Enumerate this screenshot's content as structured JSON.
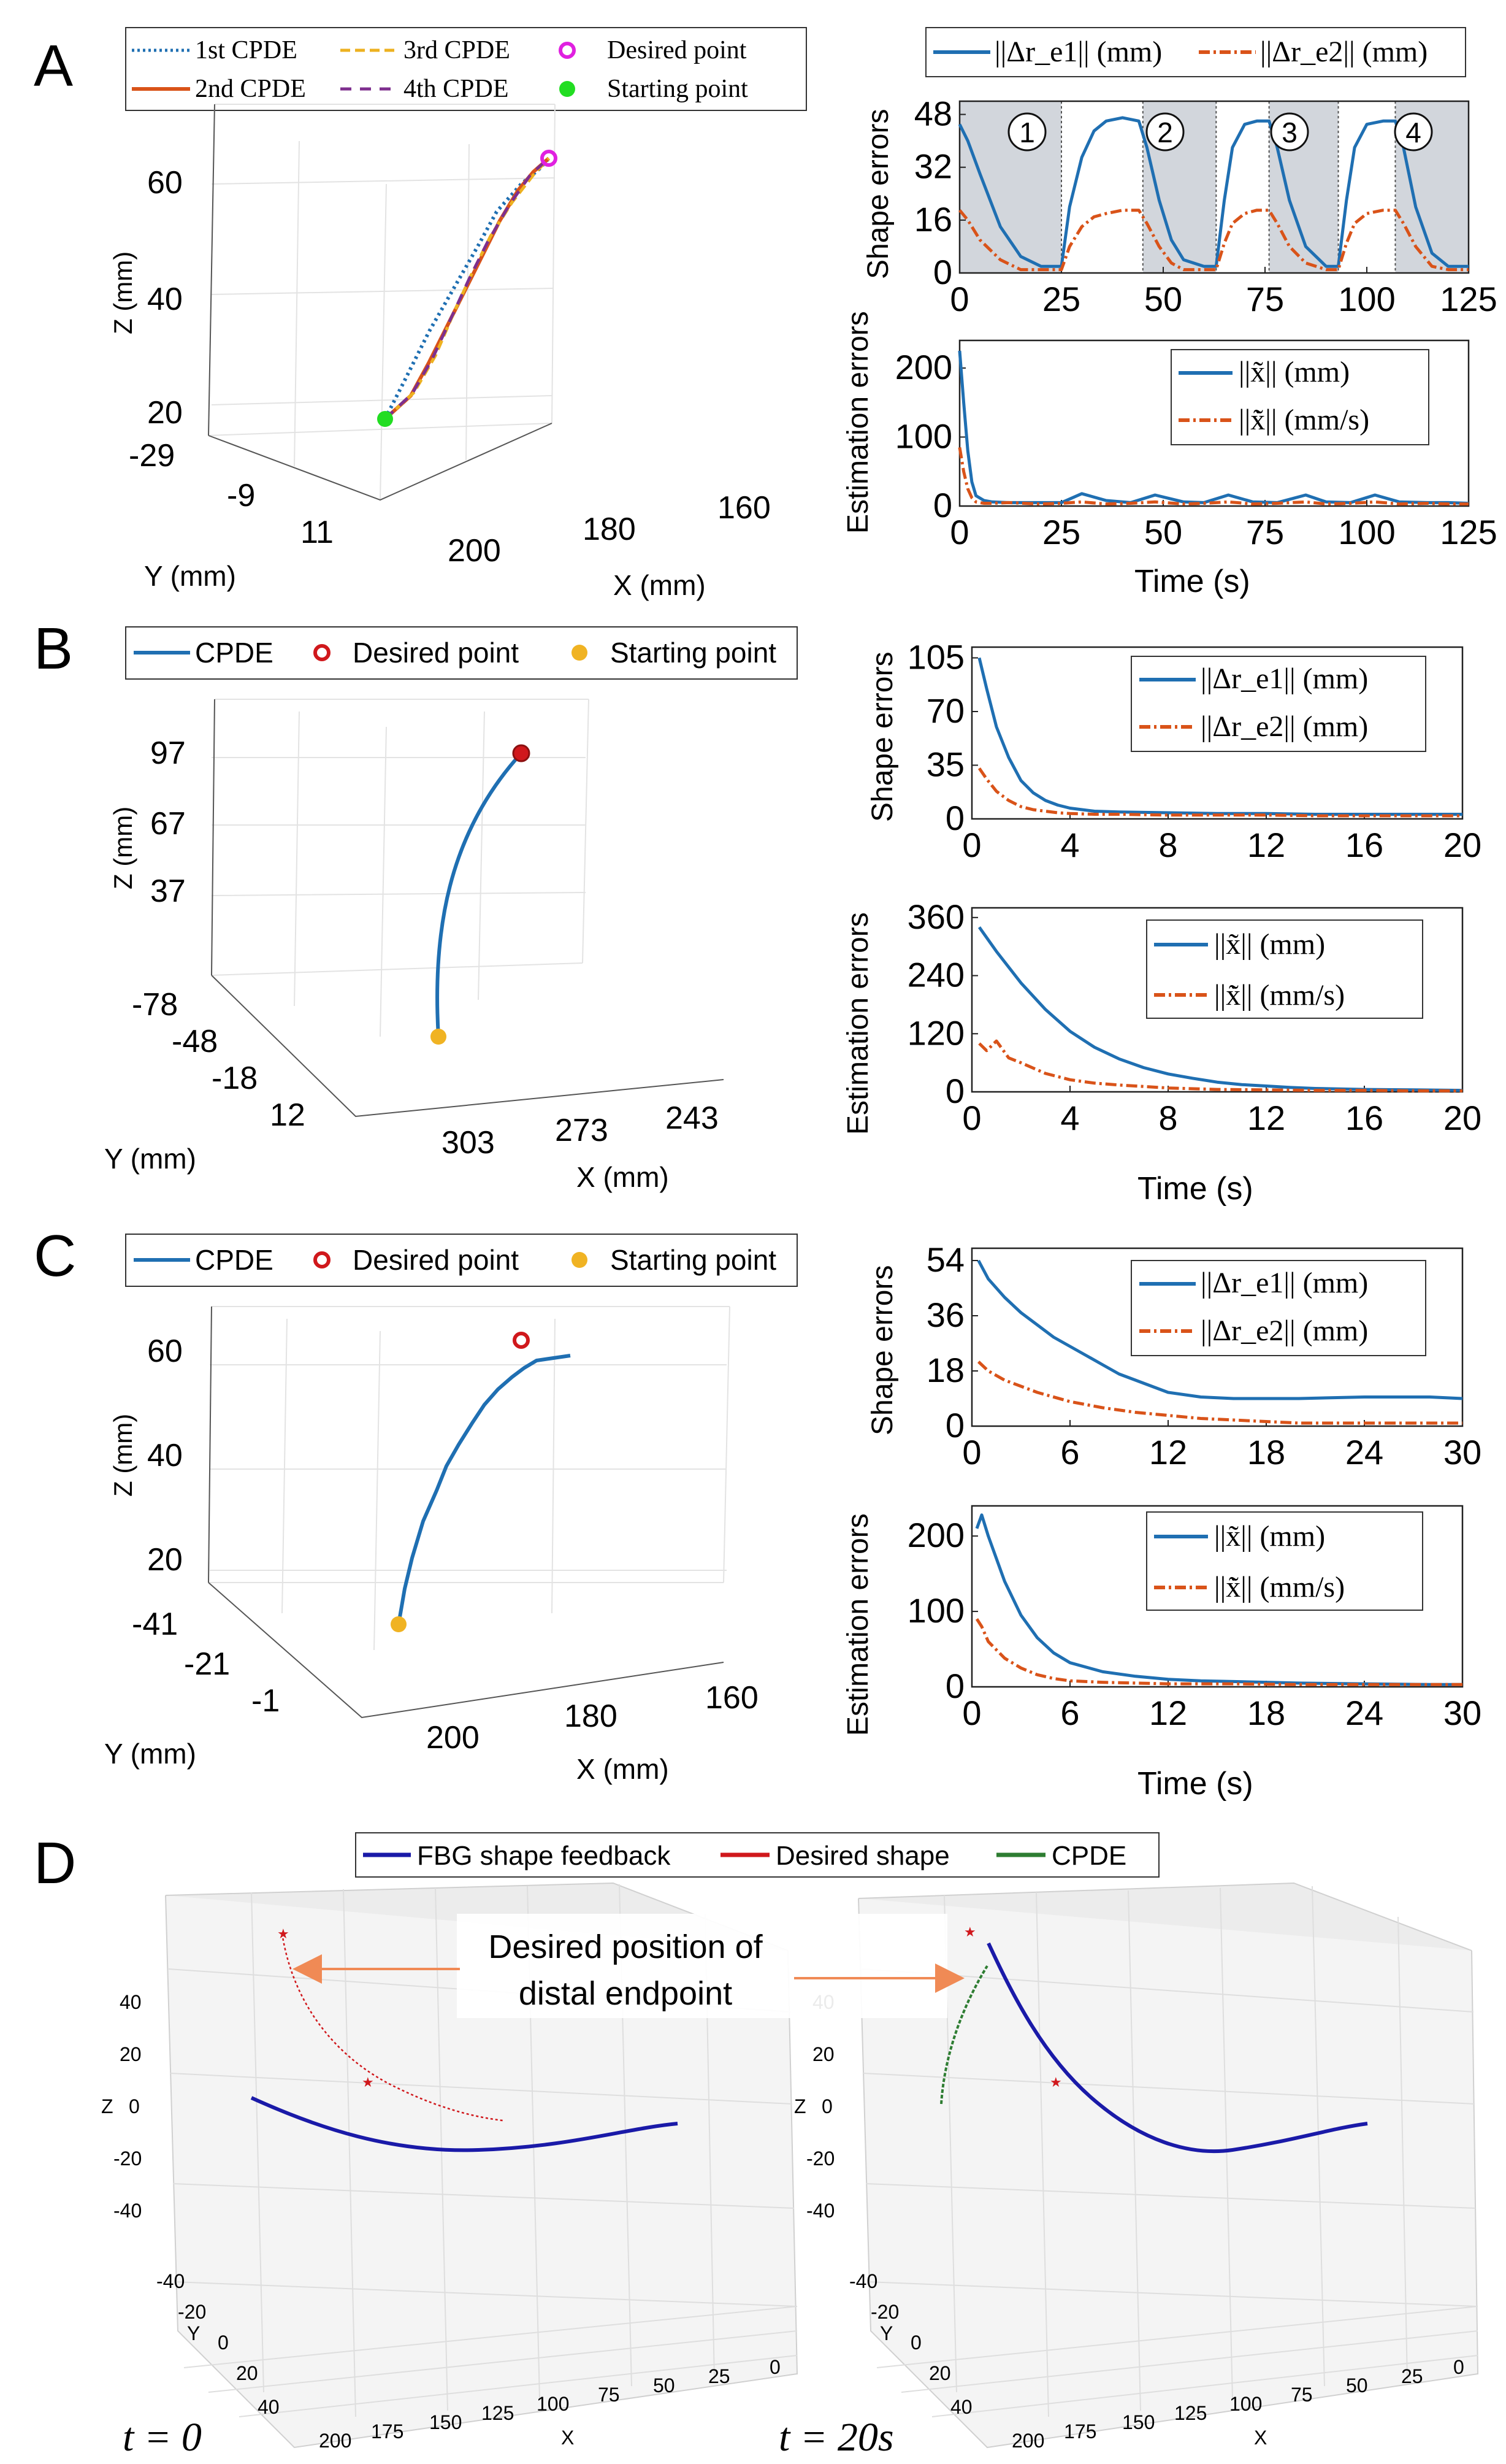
{
  "panels": {
    "A": {
      "letter": "A",
      "legend": {
        "items": [
          "1st CPDE",
          "2nd CPDE",
          "3rd CPDE",
          "4th CPDE",
          "Desired point",
          "Starting point"
        ]
      },
      "plot3d": {
        "zlabel": "Z (mm)",
        "ylabel": "Y (mm)",
        "xlabel": "X (mm)",
        "zticks": [
          "60",
          "40",
          "20"
        ],
        "yticks": [
          "-29",
          "-9",
          "11"
        ],
        "xticks": [
          "200",
          "180",
          "160"
        ]
      },
      "shape_plot": {
        "ylabel": "Shape errors",
        "xticks": [
          "0",
          "25",
          "50",
          "75",
          "100",
          "125"
        ],
        "yticks": [
          "0",
          "16",
          "32",
          "48"
        ],
        "legend": [
          "||Δr_e1|| (mm)",
          "||Δr_e2|| (mm)"
        ],
        "phase_labels": [
          "1",
          "2",
          "3",
          "4"
        ]
      },
      "est_plot": {
        "ylabel": "Estimation errors",
        "xlabel": "Time (s)",
        "xticks": [
          "0",
          "25",
          "50",
          "75",
          "100",
          "125"
        ],
        "yticks": [
          "0",
          "100",
          "200"
        ],
        "legend": [
          "||x̃|| (mm)",
          "||x̃̇|| (mm/s)"
        ]
      }
    },
    "B": {
      "letter": "B",
      "legend": {
        "items": [
          "CPDE",
          "Desired point",
          "Starting point"
        ]
      },
      "plot3d": {
        "zlabel": "Z (mm)",
        "ylabel": "Y (mm)",
        "xlabel": "X (mm)",
        "zticks": [
          "97",
          "67",
          "37"
        ],
        "yticks": [
          "-78",
          "-48",
          "-18",
          "12"
        ],
        "xticks": [
          "303",
          "273",
          "243"
        ]
      },
      "shape_plot": {
        "ylabel": "Shape errors",
        "xticks": [
          "0",
          "4",
          "8",
          "12",
          "16",
          "20"
        ],
        "yticks": [
          "0",
          "35",
          "70",
          "105"
        ],
        "legend": [
          "||Δr_e1|| (mm)",
          "||Δr_e2|| (mm)"
        ]
      },
      "est_plot": {
        "ylabel": "Estimation errors",
        "xlabel": "Time (s)",
        "xticks": [
          "0",
          "4",
          "8",
          "12",
          "16",
          "20"
        ],
        "yticks": [
          "0",
          "120",
          "240",
          "360"
        ],
        "legend": [
          "||x̃|| (mm)",
          "||x̃̇|| (mm/s)"
        ]
      }
    },
    "C": {
      "letter": "C",
      "legend": {
        "items": [
          "CPDE",
          "Desired point",
          "Starting point"
        ]
      },
      "plot3d": {
        "zlabel": "Z (mm)",
        "ylabel": "Y (mm)",
        "xlabel": "X (mm)",
        "zticks": [
          "60",
          "40",
          "20"
        ],
        "yticks": [
          "-41",
          "-21",
          "-1"
        ],
        "xticks": [
          "200",
          "180",
          "160"
        ]
      },
      "shape_plot": {
        "ylabel": "Shape errors",
        "xticks": [
          "0",
          "6",
          "12",
          "18",
          "24",
          "30"
        ],
        "yticks": [
          "0",
          "18",
          "36",
          "54"
        ],
        "legend": [
          "||Δr_e1|| (mm)",
          "||Δr_e2|| (mm)"
        ]
      },
      "est_plot": {
        "ylabel": "Estimation errors",
        "xlabel": "Time (s)",
        "xticks": [
          "0",
          "6",
          "12",
          "18",
          "24",
          "30"
        ],
        "yticks": [
          "0",
          "100",
          "200"
        ],
        "legend": [
          "||x̃|| (mm)",
          "||x̃̇|| (mm/s)"
        ]
      }
    },
    "D": {
      "letter": "D",
      "legend": {
        "items": [
          "FBG shape feedback",
          "Desired shape",
          "CPDE"
        ]
      },
      "annotation_line1": "Desired position of",
      "annotation_line2": "distal endpoint",
      "zticks": [
        "40",
        "20",
        "0",
        "-20",
        "-40"
      ],
      "yticks": [
        "-40",
        "-20",
        "0",
        "20",
        "40"
      ],
      "xticks": [
        "200",
        "175",
        "150",
        "125",
        "100",
        "75",
        "50",
        "25",
        "0"
      ],
      "zlabel": "Z",
      "ylabel": "Y",
      "xlabel": "X",
      "time_left": "t = 0",
      "time_right": "t = 20s"
    }
  },
  "colors": {
    "blue": "#1f6fb2",
    "orange": "#d95319",
    "yellow": "#edb120",
    "purple": "#7e2f8e",
    "magenta": "#e020e0",
    "green": "#22dd22",
    "red": "#d0181c",
    "gold": "#f0b323",
    "fbg_blue": "#1a1aa8",
    "cpde_green": "#2e7d32",
    "phase_shade": "#d2d6dc"
  },
  "chart_data": [
    {
      "type": "line",
      "id": "A_shape",
      "title": "Shape errors",
      "xlim": [
        0,
        125
      ],
      "ylim": [
        0,
        52
      ],
      "phase_boundaries": [
        0,
        25,
        45,
        63,
        76,
        93,
        107,
        125
      ],
      "shaded_ranges": [
        [
          0,
          25
        ],
        [
          45,
          63
        ],
        [
          76,
          93
        ],
        [
          107,
          125
        ]
      ],
      "series": [
        {
          "name": "||Δr_e1|| (mm)",
          "style": "solid",
          "x": [
            0,
            2,
            5,
            10,
            15,
            20,
            25,
            27,
            30,
            33,
            36,
            40,
            44,
            46,
            49,
            52,
            55,
            60,
            63,
            65,
            67,
            70,
            73,
            76,
            78,
            81,
            85,
            90,
            93,
            95,
            97,
            100,
            104,
            107,
            109,
            112,
            116,
            120,
            125
          ],
          "y": [
            45,
            40,
            30,
            14,
            5,
            2,
            2,
            20,
            35,
            43,
            46,
            47,
            46,
            38,
            22,
            10,
            4,
            2,
            2,
            22,
            38,
            45,
            46,
            46,
            38,
            22,
            8,
            2,
            2,
            22,
            38,
            45,
            46,
            46,
            38,
            20,
            6,
            2,
            2
          ]
        },
        {
          "name": "||Δr_e2|| (mm)",
          "style": "dashdot",
          "x": [
            0,
            2,
            5,
            10,
            15,
            20,
            25,
            27,
            30,
            33,
            36,
            40,
            44,
            46,
            49,
            52,
            55,
            60,
            63,
            65,
            67,
            70,
            73,
            76,
            78,
            81,
            85,
            90,
            93,
            95,
            97,
            100,
            104,
            107,
            109,
            112,
            116,
            120,
            125
          ],
          "y": [
            19,
            16,
            10,
            4,
            1,
            1,
            1,
            8,
            14,
            17,
            18,
            19,
            19,
            15,
            8,
            3,
            1,
            1,
            1,
            9,
            15,
            18,
            19,
            19,
            15,
            8,
            3,
            1,
            1,
            9,
            15,
            18,
            19,
            19,
            15,
            8,
            2,
            1,
            1
          ]
        }
      ]
    },
    {
      "type": "line",
      "id": "A_est",
      "xlabel": "Time (s)",
      "ylabel": "Estimation errors",
      "xlim": [
        0,
        125
      ],
      "ylim": [
        0,
        240
      ],
      "series": [
        {
          "name": "||x̃|| (mm)",
          "style": "solid",
          "x": [
            0,
            1,
            2,
            3,
            4,
            6,
            8,
            12,
            20,
            25,
            30,
            36,
            42,
            48,
            55,
            60,
            66,
            72,
            78,
            85,
            90,
            96,
            102,
            108,
            115,
            120,
            125
          ],
          "y": [
            225,
            150,
            80,
            35,
            15,
            8,
            6,
            5,
            5,
            5,
            18,
            8,
            5,
            16,
            6,
            5,
            16,
            6,
            5,
            16,
            6,
            5,
            16,
            6,
            5,
            5,
            4
          ]
        },
        {
          "name": "||x̃̇|| (mm/s)",
          "style": "dashdot",
          "x": [
            0,
            1,
            2,
            3,
            4,
            6,
            8,
            12,
            20,
            25,
            30,
            36,
            42,
            48,
            55,
            60,
            66,
            72,
            78,
            85,
            90,
            96,
            102,
            108,
            115,
            120,
            125
          ],
          "y": [
            85,
            50,
            25,
            12,
            6,
            4,
            4,
            5,
            3,
            4,
            6,
            3,
            4,
            6,
            3,
            4,
            6,
            3,
            4,
            6,
            3,
            4,
            6,
            3,
            4,
            3,
            3
          ]
        }
      ]
    },
    {
      "type": "line",
      "id": "B_shape",
      "ylabel": "Shape errors",
      "xlim": [
        0,
        20
      ],
      "ylim": [
        0,
        112
      ],
      "series": [
        {
          "name": "||Δr_e1|| (mm)",
          "style": "solid",
          "x": [
            0.3,
            0.6,
            1,
            1.5,
            2,
            2.5,
            3,
            3.5,
            4,
            5,
            6,
            8,
            10,
            12,
            14,
            16,
            18,
            20
          ],
          "y": [
            105,
            85,
            60,
            40,
            25,
            17,
            12,
            9,
            7,
            5,
            4.5,
            4,
            3.5,
            3.5,
            3,
            3,
            3,
            3
          ]
        },
        {
          "name": "||Δr_e2|| (mm)",
          "style": "dashdot",
          "x": [
            0.3,
            0.6,
            1,
            1.5,
            2,
            2.5,
            3,
            3.5,
            4,
            5,
            6,
            8,
            10,
            12,
            14,
            16,
            18,
            20
          ],
          "y": [
            33,
            26,
            18,
            12,
            8,
            6,
            5,
            4,
            3.5,
            3,
            3,
            2.5,
            2.5,
            2.5,
            2,
            2,
            2,
            2
          ]
        }
      ]
    },
    {
      "type": "line",
      "id": "B_est",
      "xlabel": "Time (s)",
      "ylabel": "Estimation errors",
      "xlim": [
        0,
        20
      ],
      "ylim": [
        0,
        380
      ],
      "series": [
        {
          "name": "||x̃|| (mm)",
          "style": "solid",
          "x": [
            0.3,
            1,
            2,
            3,
            4,
            5,
            6,
            7,
            8,
            9,
            10,
            11,
            12,
            13,
            14,
            16,
            18,
            20
          ],
          "y": [
            340,
            290,
            225,
            170,
            125,
            92,
            68,
            50,
            37,
            28,
            20,
            15,
            12,
            9,
            7,
            5,
            4,
            3
          ]
        },
        {
          "name": "||x̃̇|| (mm/s)",
          "style": "dashdot",
          "x": [
            0.3,
            0.6,
            1,
            1.5,
            2,
            3,
            4,
            5,
            6,
            8,
            10,
            12,
            14,
            16,
            18,
            20
          ],
          "y": [
            100,
            85,
            105,
            70,
            60,
            38,
            25,
            18,
            14,
            8,
            5,
            4,
            3,
            3,
            2,
            2
          ]
        }
      ]
    },
    {
      "type": "line",
      "id": "C_shape",
      "ylabel": "Shape errors",
      "xlim": [
        0,
        30
      ],
      "ylim": [
        0,
        58
      ],
      "series": [
        {
          "name": "||Δr_e1|| (mm)",
          "style": "solid",
          "x": [
            0.4,
            1,
            2,
            3,
            4,
            5,
            6,
            7,
            8,
            9,
            10,
            11,
            12,
            14,
            16,
            18,
            20,
            24,
            28,
            30
          ],
          "y": [
            54,
            48,
            42,
            37,
            33,
            29,
            26,
            23,
            20,
            17,
            15,
            13,
            11,
            9.5,
            9,
            9,
            9,
            9.5,
            9.5,
            9
          ]
        },
        {
          "name": "||Δr_e2|| (mm)",
          "style": "dashdot",
          "x": [
            0.4,
            1,
            2,
            4,
            6,
            8,
            10,
            12,
            14,
            16,
            18,
            20,
            24,
            28,
            30
          ],
          "y": [
            21,
            18,
            15,
            11,
            8,
            6,
            4.5,
            3.5,
            2.5,
            2,
            1.5,
            1,
            1,
            1,
            1
          ]
        }
      ]
    },
    {
      "type": "line",
      "id": "C_est",
      "xlabel": "Time (s)",
      "ylabel": "Estimation errors",
      "xlim": [
        0,
        30
      ],
      "ylim": [
        0,
        240
      ],
      "series": [
        {
          "name": "||x̃|| (mm)",
          "style": "solid",
          "x": [
            0.3,
            0.6,
            1,
            2,
            3,
            4,
            5,
            6,
            8,
            10,
            12,
            14,
            16,
            18,
            20,
            24,
            28,
            30
          ],
          "y": [
            210,
            228,
            200,
            140,
            95,
            65,
            45,
            32,
            20,
            14,
            10,
            8,
            7,
            6,
            5,
            4,
            3,
            3
          ]
        },
        {
          "name": "||x̃̇|| (mm/s)",
          "style": "dashdot",
          "x": [
            0.3,
            0.6,
            1,
            2,
            3,
            4,
            5,
            6,
            8,
            10,
            12,
            16,
            20,
            24,
            28,
            30
          ],
          "y": [
            90,
            80,
            60,
            38,
            25,
            16,
            11,
            8,
            6,
            5,
            4,
            4,
            3,
            3,
            3,
            3
          ]
        }
      ]
    }
  ]
}
